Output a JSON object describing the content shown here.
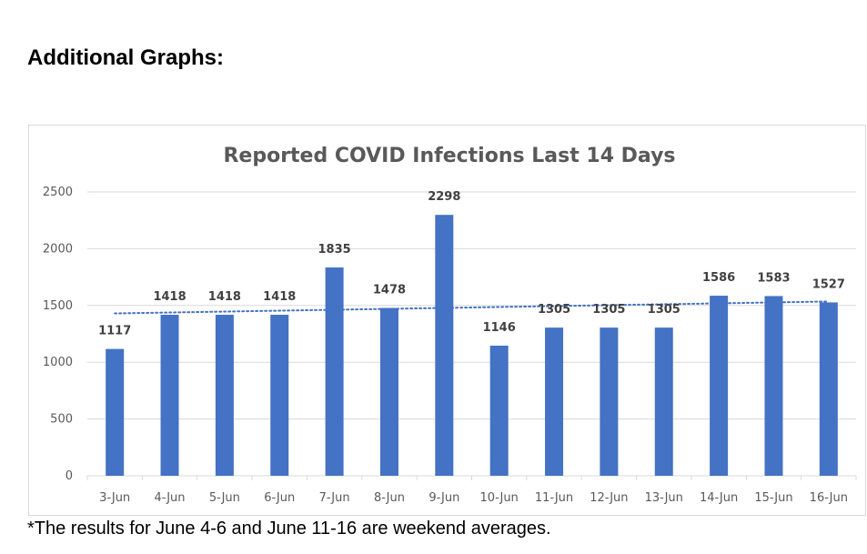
{
  "heading": "Additional Graphs:",
  "footnote": "*The results for June 4-6 and June 11-16 are weekend averages.",
  "colors": {
    "bar": "#4472c4",
    "trendline": "#4472c4",
    "gridline": "#d9d9d9",
    "text": "#595959"
  },
  "chart_data": {
    "type": "bar",
    "title": "Reported COVID Infections Last 14 Days",
    "xlabel": "",
    "ylabel": "",
    "ylim": [
      0,
      2500
    ],
    "yticks": [
      0,
      500,
      1000,
      1500,
      2000,
      2500
    ],
    "grid": true,
    "legend": "none",
    "categories": [
      "3-Jun",
      "4-Jun",
      "5-Jun",
      "6-Jun",
      "7-Jun",
      "8-Jun",
      "9-Jun",
      "10-Jun",
      "11-Jun",
      "12-Jun",
      "13-Jun",
      "14-Jun",
      "15-Jun",
      "16-Jun"
    ],
    "values": [
      1117,
      1418,
      1418,
      1418,
      1835,
      1478,
      2298,
      1146,
      1305,
      1305,
      1305,
      1586,
      1583,
      1527
    ],
    "trendline": {
      "type": "linear",
      "style": "dotted",
      "start": 1430,
      "end": 1535
    }
  }
}
